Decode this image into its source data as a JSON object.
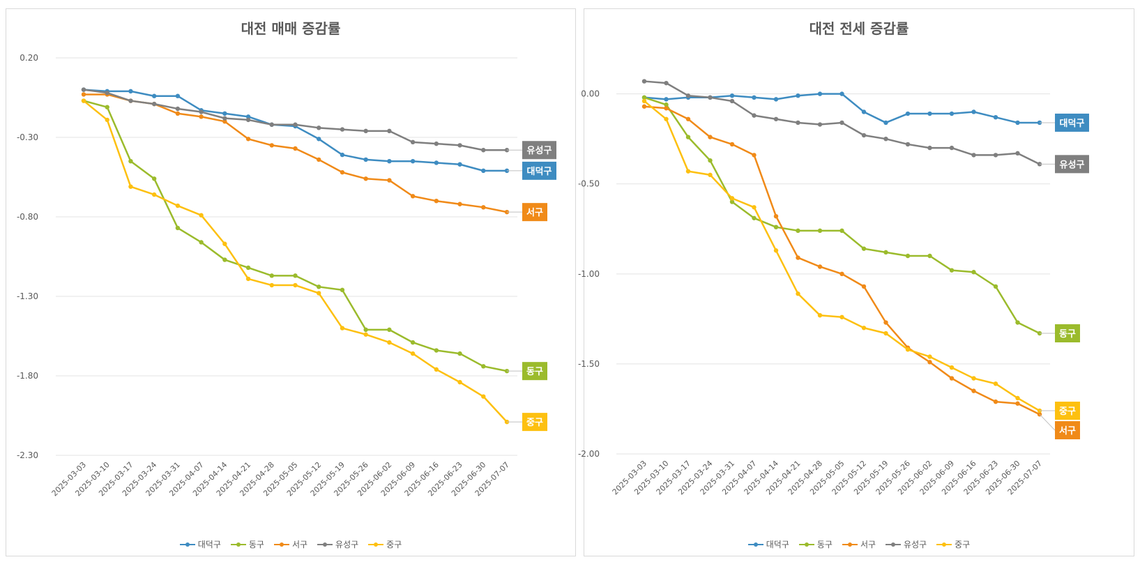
{
  "dates": [
    "2025-03-03",
    "2025-03-10",
    "2025-03-17",
    "2025-03-24",
    "2025-03-31",
    "2025-04-07",
    "2025-04-14",
    "2025-04-21",
    "2025-04-28",
    "2025-05-05",
    "2025-05-12",
    "2025-05-19",
    "2025-05-26",
    "2025-06-02",
    "2025-06-09",
    "2025-06-16",
    "2025-06-23",
    "2025-06-30",
    "2025-07-07"
  ],
  "chart_data": [
    {
      "type": "line",
      "title": "대전 매매 증감률",
      "ylim": [
        -2.3,
        0.2
      ],
      "yticks": [
        "0.20",
        "-0.30",
        "-0.80",
        "-1.30",
        "-1.80",
        "-2.30"
      ],
      "grid": true,
      "legend": "bottom",
      "series": [
        {
          "name": "대덕구",
          "color": "#3E8CC1",
          "end_label": "대덕구",
          "values": [
            0.0,
            -0.01,
            -0.01,
            -0.04,
            -0.04,
            -0.13,
            -0.15,
            -0.17,
            -0.22,
            -0.23,
            -0.31,
            -0.41,
            -0.44,
            -0.45,
            -0.45,
            -0.46,
            -0.47,
            -0.51,
            -0.51
          ]
        },
        {
          "name": "동구",
          "color": "#9BBB2C",
          "end_label": "동구",
          "values": [
            -0.07,
            -0.11,
            -0.45,
            -0.56,
            -0.87,
            -0.96,
            -1.07,
            -1.12,
            -1.17,
            -1.17,
            -1.24,
            -1.26,
            -1.51,
            -1.51,
            -1.59,
            -1.64,
            -1.66,
            -1.74,
            -1.77
          ]
        },
        {
          "name": "서구",
          "color": "#F08A18",
          "end_label": "서구",
          "values": [
            -0.03,
            -0.03,
            -0.07,
            -0.09,
            -0.15,
            -0.17,
            -0.2,
            -0.31,
            -0.35,
            -0.37,
            -0.44,
            -0.52,
            -0.56,
            -0.57,
            -0.67,
            -0.7,
            -0.72,
            -0.74,
            -0.77
          ]
        },
        {
          "name": "유성구",
          "color": "#7F7F7F",
          "end_label": "유성구",
          "values": [
            0.0,
            -0.02,
            -0.07,
            -0.09,
            -0.12,
            -0.14,
            -0.18,
            -0.19,
            -0.22,
            -0.22,
            -0.24,
            -0.25,
            -0.26,
            -0.26,
            -0.33,
            -0.34,
            -0.35,
            -0.38,
            -0.38
          ]
        },
        {
          "name": "중구",
          "color": "#FDC010",
          "end_label": "중구",
          "values": [
            -0.07,
            -0.19,
            -0.61,
            -0.66,
            -0.73,
            -0.79,
            -0.97,
            -1.19,
            -1.23,
            -1.23,
            -1.28,
            -1.5,
            -1.54,
            -1.59,
            -1.66,
            -1.76,
            -1.84,
            -1.93,
            -2.09
          ]
        }
      ]
    },
    {
      "type": "line",
      "title": "대전 전세 증감률",
      "ylim": [
        -2.0,
        0.2
      ],
      "yticks": [
        "0.00",
        "-0.50",
        "-1.00",
        "-1.50",
        "-2.00"
      ],
      "grid": true,
      "legend": "bottom",
      "series": [
        {
          "name": "대덕구",
          "color": "#3E8CC1",
          "end_label": "대덕구",
          "values": [
            -0.02,
            -0.03,
            -0.02,
            -0.02,
            -0.01,
            -0.02,
            -0.03,
            -0.01,
            0.0,
            0.0,
            -0.1,
            -0.16,
            -0.11,
            -0.11,
            -0.11,
            -0.1,
            -0.13,
            -0.16,
            -0.16
          ]
        },
        {
          "name": "동구",
          "color": "#9BBB2C",
          "end_label": "동구",
          "values": [
            -0.02,
            -0.06,
            -0.24,
            -0.37,
            -0.6,
            -0.69,
            -0.74,
            -0.76,
            -0.76,
            -0.76,
            -0.86,
            -0.88,
            -0.9,
            -0.9,
            -0.98,
            -0.99,
            -1.07,
            -1.27,
            -1.33
          ]
        },
        {
          "name": "서구",
          "color": "#F08A18",
          "end_label": "서구",
          "values": [
            -0.07,
            -0.08,
            -0.14,
            -0.24,
            -0.28,
            -0.34,
            -0.68,
            -0.91,
            -0.96,
            -1.0,
            -1.07,
            -1.27,
            -1.41,
            -1.49,
            -1.58,
            -1.65,
            -1.71,
            -1.72,
            -1.78
          ]
        },
        {
          "name": "유성구",
          "color": "#7F7F7F",
          "end_label": "유성구",
          "values": [
            0.07,
            0.06,
            -0.01,
            -0.02,
            -0.04,
            -0.12,
            -0.14,
            -0.16,
            -0.17,
            -0.16,
            -0.23,
            -0.25,
            -0.28,
            -0.3,
            -0.3,
            -0.34,
            -0.34,
            -0.33,
            -0.39
          ]
        },
        {
          "name": "중구",
          "color": "#FDC010",
          "end_label": "중구",
          "values": [
            -0.04,
            -0.14,
            -0.43,
            -0.45,
            -0.58,
            -0.63,
            -0.87,
            -1.11,
            -1.23,
            -1.24,
            -1.3,
            -1.33,
            -1.42,
            -1.46,
            -1.52,
            -1.58,
            -1.61,
            -1.69,
            -1.76
          ]
        }
      ]
    }
  ]
}
